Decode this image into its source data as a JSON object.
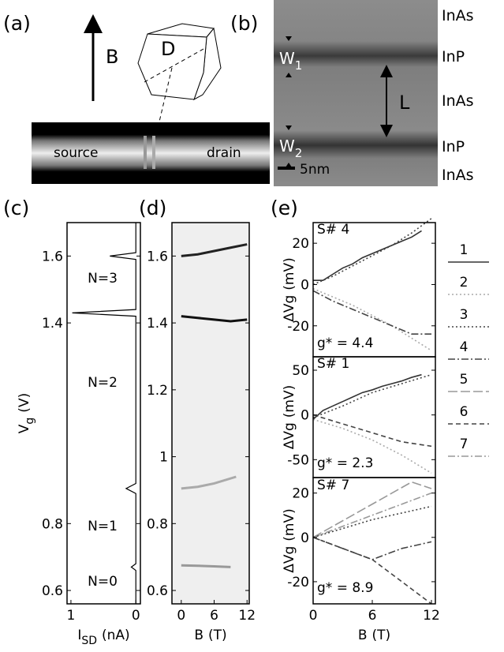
{
  "panels": {
    "a": {
      "label": "(a)",
      "field": "B",
      "dot": "D",
      "source": "source",
      "drain": "drain"
    },
    "b": {
      "label": "(b)",
      "w1": {
        "text": "W",
        "sub": "1"
      },
      "w2": {
        "text": "W",
        "sub": "2"
      },
      "length": "L",
      "scale": "5nm",
      "layers": [
        "InAs",
        "InP",
        "InAs",
        "InP",
        "InAs"
      ]
    }
  },
  "chart_data": [
    {
      "type": "line",
      "panel_label": "(c)",
      "xlabel": {
        "text": "I",
        "sub": "SD",
        "unit": "(nA)"
      },
      "ylabel": {
        "text": "V",
        "sub": "g",
        "unit": "(V)"
      },
      "xlim": [
        1.06,
        -0.07
      ],
      "xticks": [
        1,
        0
      ],
      "ylim": [
        0.56,
        1.7
      ],
      "yticks": [
        0.6,
        0.8,
        1.4,
        1.6
      ],
      "annotations": [
        "N=3",
        "N=2",
        "N=1",
        "N=0"
      ],
      "series": [
        {
          "color": "#000",
          "x": [
            0,
            0,
            0.07,
            0,
            0,
            0.15,
            0,
            0,
            0.98,
            0,
            0,
            0.4,
            0,
            0
          ],
          "values": [
            0.56,
            0.66,
            0.67,
            0.68,
            0.89,
            0.905,
            0.92,
            1.42,
            1.43,
            1.44,
            1.59,
            1.6,
            1.61,
            1.7
          ]
        }
      ]
    },
    {
      "type": "line",
      "panel_label": "(d)",
      "background": "#efefef",
      "xlabel": {
        "text": "B",
        "unit": "(T)"
      },
      "xlim": [
        -1.7,
        12.4
      ],
      "xticks": [
        0,
        6,
        12
      ],
      "ylim": [
        0.56,
        1.7
      ],
      "yticks": [
        0.6,
        0.8,
        1.0,
        1.2,
        1.4,
        1.6
      ],
      "series": [
        {
          "color": "#999",
          "x": [
            0,
            3,
            6,
            9
          ],
          "values": [
            0.675,
            0.674,
            0.672,
            0.67
          ]
        },
        {
          "color": "#aaa",
          "x": [
            0,
            3,
            6,
            10
          ],
          "values": [
            0.905,
            0.91,
            0.92,
            0.94
          ]
        },
        {
          "color": "#111",
          "x": [
            0,
            3,
            6,
            9,
            12
          ],
          "values": [
            1.42,
            1.415,
            1.41,
            1.405,
            1.41
          ]
        },
        {
          "color": "#222",
          "x": [
            0,
            3,
            6,
            9,
            12
          ],
          "values": [
            1.6,
            1.605,
            1.615,
            1.625,
            1.635
          ]
        }
      ]
    },
    {
      "type": "line",
      "panel_label": "(e)",
      "ylabel": {
        "text": "ΔVg",
        "unit": "(mV)"
      },
      "xlim": [
        0,
        12.4
      ],
      "ylim": [
        -35,
        30
      ],
      "yticks": [
        20,
        0,
        -20
      ],
      "annotations": [
        "S# 4",
        "g* = 4.4"
      ],
      "legend": [
        {
          "name": "1",
          "color": "#333",
          "dash": "none"
        },
        {
          "name": "2",
          "color": "#aaa",
          "dash": "2,3"
        },
        {
          "name": "3",
          "color": "#444",
          "dash": "2,3"
        },
        {
          "name": "4",
          "color": "#444",
          "dash": "9,3,2,3"
        },
        {
          "name": "5",
          "color": "#999",
          "dash": "12,4"
        },
        {
          "name": "6",
          "color": "#444",
          "dash": "6,4"
        },
        {
          "name": "7",
          "color": "#999",
          "dash": "9,3,2,3"
        }
      ],
      "series": [
        {
          "name": "1",
          "x": [
            0,
            1,
            2,
            3,
            4,
            5,
            6,
            7,
            8,
            9,
            10,
            11
          ],
          "values": [
            2,
            2,
            5,
            8,
            10,
            13,
            15,
            17,
            19,
            21,
            23,
            26
          ]
        },
        {
          "name": "3",
          "x": [
            0,
            2,
            4,
            6,
            8,
            10,
            12
          ],
          "values": [
            0,
            4,
            9,
            14,
            19,
            25,
            32
          ]
        },
        {
          "name": "2",
          "x": [
            0,
            2,
            4,
            6,
            8,
            10,
            12
          ],
          "values": [
            -2,
            -6,
            -10,
            -15,
            -20,
            -26,
            -32
          ]
        },
        {
          "name": "4",
          "x": [
            0,
            2,
            4,
            6,
            8,
            10,
            12
          ],
          "values": [
            -3,
            -8,
            -12,
            -16,
            -20,
            -24,
            -24
          ]
        }
      ]
    },
    {
      "type": "line",
      "ylabel": {
        "text": "ΔVg",
        "unit": "(mV)"
      },
      "xlim": [
        0,
        12.4
      ],
      "ylim": [
        -70,
        65
      ],
      "yticks": [
        50,
        0,
        -50
      ],
      "annotations": [
        "S# 1",
        "g* = 2.3"
      ],
      "series": [
        {
          "name": "1",
          "x": [
            0,
            1,
            2,
            3,
            4,
            5,
            6,
            7,
            8,
            9,
            10,
            11
          ],
          "values": [
            -5,
            5,
            10,
            15,
            20,
            25,
            28,
            32,
            35,
            38,
            42,
            45
          ]
        },
        {
          "name": "3",
          "x": [
            0,
            3,
            6,
            9,
            12
          ],
          "values": [
            -3,
            10,
            25,
            35,
            45
          ]
        },
        {
          "name": "6",
          "x": [
            0,
            3,
            6,
            9,
            12
          ],
          "values": [
            0,
            -10,
            -20,
            -30,
            -35
          ]
        },
        {
          "name": "2",
          "x": [
            0,
            3,
            6,
            9,
            12
          ],
          "values": [
            -5,
            -15,
            -28,
            -45,
            -65
          ]
        }
      ]
    },
    {
      "type": "line",
      "xlabel": {
        "text": "B",
        "unit": "(T)"
      },
      "ylabel": {
        "text": "ΔVg",
        "unit": "(mV)"
      },
      "xlim": [
        0,
        12.4
      ],
      "xticks": [
        0,
        6,
        12
      ],
      "ylim": [
        -30,
        27
      ],
      "yticks": [
        20,
        0,
        -20
      ],
      "annotations": [
        "S# 7",
        "g* = 8.9"
      ],
      "series": [
        {
          "name": "5",
          "x": [
            0,
            10,
            12
          ],
          "values": [
            0,
            25,
            22
          ]
        },
        {
          "name": "7",
          "x": [
            0,
            12
          ],
          "values": [
            0,
            20
          ]
        },
        {
          "name": "3",
          "x": [
            0,
            6,
            12
          ],
          "values": [
            0,
            8,
            14
          ]
        },
        {
          "name": "4",
          "x": [
            0,
            6,
            9,
            12
          ],
          "values": [
            0,
            -10,
            -5,
            -2
          ]
        },
        {
          "name": "6",
          "x": [
            0,
            6,
            12
          ],
          "values": [
            0,
            -10,
            -30
          ]
        }
      ]
    }
  ]
}
